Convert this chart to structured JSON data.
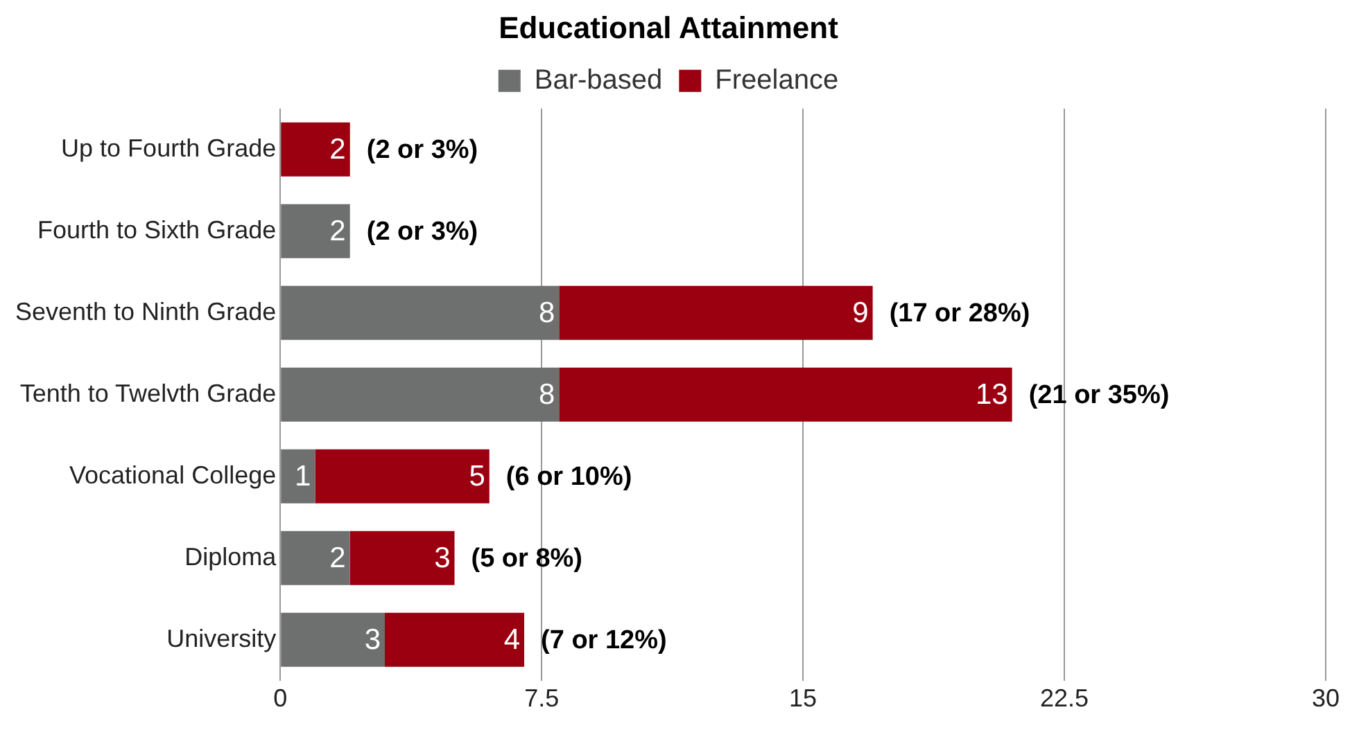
{
  "chart_data": {
    "type": "bar",
    "title": "Educational Attainment",
    "orientation": "horizontal",
    "stacked": true,
    "categories": [
      "Up to Fourth Grade",
      "Fourth to Sixth Grade",
      "Seventh to Ninth Grade",
      "Tenth to Twelvth Grade",
      "Vocational College",
      "Diploma",
      "University"
    ],
    "series": [
      {
        "name": "Bar-based",
        "color": "#6e706f",
        "values": [
          null,
          2,
          8,
          8,
          1,
          2,
          3
        ]
      },
      {
        "name": "Freelance",
        "color": "#9b0010",
        "values": [
          2,
          null,
          9,
          13,
          5,
          3,
          4
        ]
      }
    ],
    "xlim": [
      0,
      30
    ],
    "xticks": [
      0,
      7.5,
      15,
      22.5,
      30
    ],
    "grid": "x",
    "legend": "top",
    "data_labels": true,
    "totals": [
      "(2 or 3%)",
      "(2 or 3%)",
      "(17 or 28%)",
      "(21 or 35%)",
      "(6 or 10%)",
      "(5 or 8%)",
      "(7 or 12%)"
    ]
  }
}
